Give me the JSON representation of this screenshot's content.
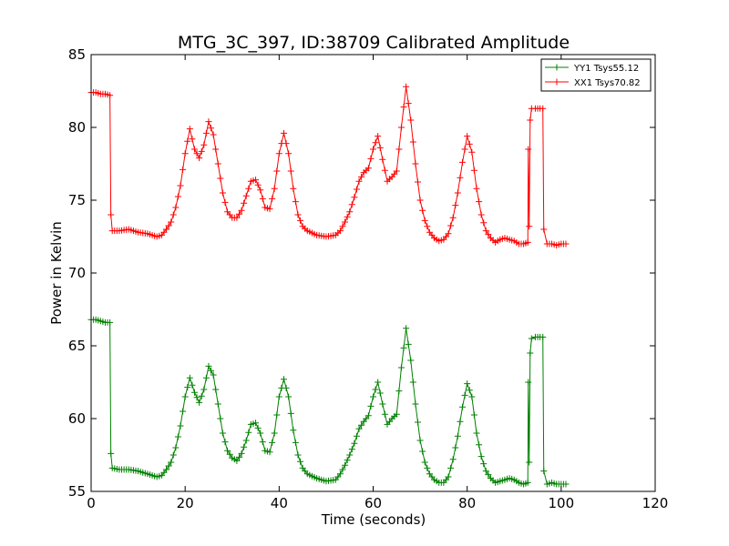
{
  "chart_data": {
    "type": "line",
    "title": "MTG_3C_397, ID:38709 Calibrated Amplitude",
    "xlabel": "Time (seconds)",
    "ylabel": "Power in Kelvin",
    "xlim": [
      0,
      120
    ],
    "ylim": [
      55,
      85
    ],
    "xticks": [
      "0",
      "20",
      "40",
      "60",
      "80",
      "100",
      "120"
    ],
    "yticks": [
      "55",
      "60",
      "65",
      "70",
      "75",
      "80",
      "85"
    ],
    "grid": false,
    "legend_position": "top-right",
    "marker": "plus",
    "series": [
      {
        "name": "YY1 Tsys55.12",
        "color": "#008000",
        "points": [
          [
            0,
            66.8
          ],
          [
            1,
            66.8
          ],
          [
            2,
            66.7
          ],
          [
            3,
            66.6
          ],
          [
            4,
            66.6
          ],
          [
            4.2,
            57.6
          ],
          [
            4.5,
            56.6
          ],
          [
            6,
            56.5
          ],
          [
            8,
            56.5
          ],
          [
            10,
            56.4
          ],
          [
            12,
            56.2
          ],
          [
            14,
            56.0
          ],
          [
            15,
            56.1
          ],
          [
            16,
            56.5
          ],
          [
            17,
            57.0
          ],
          [
            18,
            58.0
          ],
          [
            19,
            59.5
          ],
          [
            20,
            61.5
          ],
          [
            21,
            62.8
          ],
          [
            22,
            61.8
          ],
          [
            23,
            61.1
          ],
          [
            24,
            62.0
          ],
          [
            25,
            63.6
          ],
          [
            26,
            63.0
          ],
          [
            27,
            61.0
          ],
          [
            28,
            59.0
          ],
          [
            29,
            57.8
          ],
          [
            30,
            57.3
          ],
          [
            31,
            57.1
          ],
          [
            32,
            57.6
          ],
          [
            33,
            58.5
          ],
          [
            34,
            59.6
          ],
          [
            35,
            59.7
          ],
          [
            36,
            59.0
          ],
          [
            37,
            57.8
          ],
          [
            38,
            57.7
          ],
          [
            39,
            59.0
          ],
          [
            40,
            61.5
          ],
          [
            41,
            62.7
          ],
          [
            42,
            61.5
          ],
          [
            43,
            59.2
          ],
          [
            44,
            57.5
          ],
          [
            45,
            56.6
          ],
          [
            46,
            56.2
          ],
          [
            48,
            55.9
          ],
          [
            50,
            55.7
          ],
          [
            52,
            55.8
          ],
          [
            53,
            56.2
          ],
          [
            54,
            56.8
          ],
          [
            55,
            57.5
          ],
          [
            56,
            58.3
          ],
          [
            57,
            59.3
          ],
          [
            58,
            59.8
          ],
          [
            59,
            60.2
          ],
          [
            60,
            61.5
          ],
          [
            61,
            62.5
          ],
          [
            62,
            61.0
          ],
          [
            63,
            59.6
          ],
          [
            64,
            60.0
          ],
          [
            65,
            60.3
          ],
          [
            66,
            63.5
          ],
          [
            67,
            66.2
          ],
          [
            68,
            64.0
          ],
          [
            69,
            61.0
          ],
          [
            70,
            58.5
          ],
          [
            71,
            57.0
          ],
          [
            72,
            56.2
          ],
          [
            73,
            55.8
          ],
          [
            74,
            55.6
          ],
          [
            75,
            55.6
          ],
          [
            76,
            56.0
          ],
          [
            77,
            57.2
          ],
          [
            78,
            58.8
          ],
          [
            79,
            60.8
          ],
          [
            80,
            62.4
          ],
          [
            81,
            61.5
          ],
          [
            82,
            59.0
          ],
          [
            83,
            57.4
          ],
          [
            84,
            56.4
          ],
          [
            85,
            55.9
          ],
          [
            86,
            55.6
          ],
          [
            87,
            55.7
          ],
          [
            88,
            55.8
          ],
          [
            89,
            55.9
          ],
          [
            90,
            55.8
          ],
          [
            91,
            55.6
          ],
          [
            92,
            55.5
          ],
          [
            92.9,
            55.6
          ],
          [
            93,
            62.5
          ],
          [
            93.2,
            57.0
          ],
          [
            93.4,
            64.5
          ],
          [
            93.7,
            65.5
          ],
          [
            94.5,
            65.6
          ],
          [
            95.5,
            65.6
          ],
          [
            96.1,
            65.6
          ],
          [
            96.3,
            56.4
          ],
          [
            97,
            55.5
          ],
          [
            98,
            55.6
          ],
          [
            99,
            55.5
          ],
          [
            100,
            55.5
          ],
          [
            101,
            55.5
          ]
        ]
      },
      {
        "name": "XX1 Tsys70.82",
        "color": "#ff0000",
        "points": [
          [
            0,
            82.4
          ],
          [
            1,
            82.4
          ],
          [
            2,
            82.3
          ],
          [
            3,
            82.3
          ],
          [
            4,
            82.2
          ],
          [
            4.2,
            74.0
          ],
          [
            4.5,
            72.9
          ],
          [
            6,
            72.9
          ],
          [
            8,
            73.0
          ],
          [
            10,
            72.8
          ],
          [
            12,
            72.7
          ],
          [
            14,
            72.5
          ],
          [
            15,
            72.6
          ],
          [
            16,
            73.0
          ],
          [
            17,
            73.5
          ],
          [
            18,
            74.5
          ],
          [
            19,
            76.0
          ],
          [
            20,
            78.2
          ],
          [
            21,
            79.9
          ],
          [
            22,
            78.5
          ],
          [
            23,
            77.9
          ],
          [
            24,
            78.8
          ],
          [
            25,
            80.4
          ],
          [
            26,
            79.5
          ],
          [
            27,
            77.5
          ],
          [
            28,
            75.5
          ],
          [
            29,
            74.2
          ],
          [
            30,
            73.8
          ],
          [
            31,
            73.8
          ],
          [
            32,
            74.3
          ],
          [
            33,
            75.3
          ],
          [
            34,
            76.3
          ],
          [
            35,
            76.4
          ],
          [
            36,
            75.7
          ],
          [
            37,
            74.5
          ],
          [
            38,
            74.4
          ],
          [
            39,
            75.8
          ],
          [
            40,
            78.2
          ],
          [
            41,
            79.6
          ],
          [
            42,
            78.2
          ],
          [
            43,
            75.8
          ],
          [
            44,
            74.0
          ],
          [
            45,
            73.2
          ],
          [
            46,
            72.9
          ],
          [
            48,
            72.6
          ],
          [
            50,
            72.5
          ],
          [
            52,
            72.6
          ],
          [
            53,
            72.9
          ],
          [
            54,
            73.5
          ],
          [
            55,
            74.2
          ],
          [
            56,
            75.2
          ],
          [
            57,
            76.3
          ],
          [
            58,
            76.9
          ],
          [
            59,
            77.2
          ],
          [
            60,
            78.5
          ],
          [
            61,
            79.4
          ],
          [
            62,
            77.8
          ],
          [
            63,
            76.3
          ],
          [
            64,
            76.6
          ],
          [
            65,
            77.0
          ],
          [
            66,
            80.0
          ],
          [
            67,
            82.8
          ],
          [
            68,
            80.5
          ],
          [
            69,
            77.5
          ],
          [
            70,
            75.0
          ],
          [
            71,
            73.6
          ],
          [
            72,
            72.8
          ],
          [
            73,
            72.4
          ],
          [
            74,
            72.2
          ],
          [
            75,
            72.3
          ],
          [
            76,
            72.7
          ],
          [
            77,
            73.8
          ],
          [
            78,
            75.5
          ],
          [
            79,
            77.6
          ],
          [
            80,
            79.4
          ],
          [
            81,
            78.3
          ],
          [
            82,
            75.8
          ],
          [
            83,
            74.0
          ],
          [
            84,
            72.9
          ],
          [
            85,
            72.4
          ],
          [
            86,
            72.1
          ],
          [
            87,
            72.3
          ],
          [
            88,
            72.4
          ],
          [
            89,
            72.3
          ],
          [
            90,
            72.2
          ],
          [
            91,
            72.0
          ],
          [
            92,
            72.0
          ],
          [
            92.9,
            72.1
          ],
          [
            93,
            78.5
          ],
          [
            93.2,
            73.2
          ],
          [
            93.4,
            80.5
          ],
          [
            93.7,
            81.3
          ],
          [
            94.5,
            81.3
          ],
          [
            95.5,
            81.3
          ],
          [
            96.1,
            81.3
          ],
          [
            96.3,
            73.0
          ],
          [
            97,
            72.0
          ],
          [
            98,
            72.0
          ],
          [
            99,
            71.9
          ],
          [
            100,
            72.0
          ],
          [
            101,
            72.0
          ]
        ]
      }
    ]
  }
}
